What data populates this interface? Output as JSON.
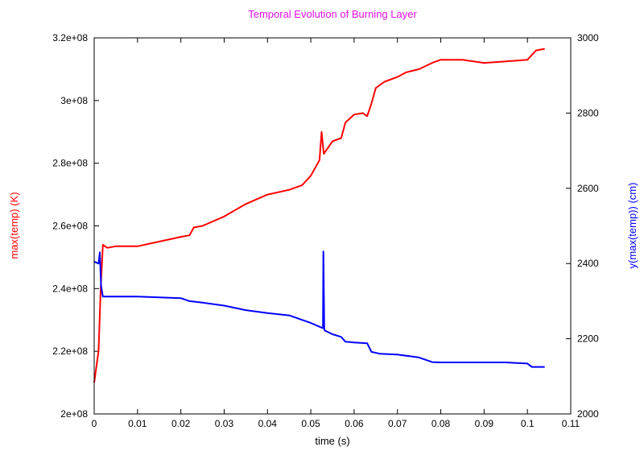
{
  "chart_data": {
    "type": "line",
    "title": "Temporal Evolution of Burning Layer",
    "xlabel": "time (s)",
    "ylabel_left": "max(temp) (K)",
    "ylabel_right": "y(max(temp)) (cm)",
    "xlim": [
      0,
      0.11
    ],
    "ylim_left": [
      200000000,
      320000000
    ],
    "ylim_right": [
      2000,
      3000
    ],
    "x_ticks": [
      0,
      0.01,
      0.02,
      0.03,
      0.04,
      0.05,
      0.06,
      0.07,
      0.08,
      0.09,
      0.1,
      0.11
    ],
    "x_tick_labels": [
      "0",
      "0.01",
      "0.02",
      "0.03",
      "0.04",
      "0.05",
      "0.06",
      "0.07",
      "0.08",
      "0.09",
      "0.1",
      "0.11"
    ],
    "y_left_ticks": [
      200000000,
      220000000,
      240000000,
      260000000,
      280000000,
      300000000,
      320000000
    ],
    "y_left_tick_labels": [
      "2e+08",
      "2.2e+08",
      "2.4e+08",
      "2.6e+08",
      "2.8e+08",
      "3e+08",
      "3.2e+08"
    ],
    "y_right_ticks": [
      2000,
      2200,
      2400,
      2600,
      2800,
      3000
    ],
    "y_right_tick_labels": [
      "2000",
      "2200",
      "2400",
      "2600",
      "2800",
      "3000"
    ],
    "grid": false,
    "series": [
      {
        "color": "#ff0000",
        "axis": "left",
        "x": [
          0,
          0.0005,
          0.001,
          0.0015,
          0.002,
          0.003,
          0.005,
          0.01,
          0.015,
          0.02,
          0.022,
          0.023,
          0.025,
          0.03,
          0.035,
          0.04,
          0.045,
          0.048,
          0.05,
          0.052,
          0.0525,
          0.053,
          0.055,
          0.057,
          0.058,
          0.06,
          0.062,
          0.063,
          0.064,
          0.065,
          0.067,
          0.07,
          0.072,
          0.075,
          0.078,
          0.08,
          0.085,
          0.09,
          0.095,
          0.1,
          0.102,
          0.104
        ],
        "values": [
          210000000,
          215000000,
          220000000,
          240000000,
          254000000,
          253000000,
          253500000,
          253500000,
          255000000,
          256500000,
          257000000,
          259500000,
          260000000,
          263000000,
          267000000,
          270000000,
          271500000,
          273000000,
          276000000,
          281000000,
          290000000,
          283000000,
          287000000,
          288000000,
          293000000,
          295500000,
          296000000,
          295000000,
          299000000,
          304000000,
          306000000,
          307500000,
          309000000,
          310000000,
          312000000,
          313000000,
          313000000,
          312000000,
          312500000,
          313000000,
          316000000,
          316500000
        ]
      },
      {
        "color": "#0000ff",
        "axis": "right",
        "x": [
          0,
          0.001,
          0.0013,
          0.0016,
          0.002,
          0.003,
          0.005,
          0.01,
          0.02,
          0.022,
          0.025,
          0.03,
          0.035,
          0.04,
          0.045,
          0.05,
          0.052,
          0.0528,
          0.0529,
          0.0531,
          0.0532,
          0.055,
          0.057,
          0.058,
          0.06,
          0.063,
          0.064,
          0.066,
          0.07,
          0.075,
          0.078,
          0.08,
          0.085,
          0.09,
          0.095,
          0.1,
          0.101,
          0.104
        ],
        "values": [
          2405,
          2400,
          2430,
          2340,
          2312,
          2312,
          2312,
          2312,
          2308,
          2300,
          2296,
          2288,
          2276,
          2268,
          2262,
          2242,
          2232,
          2228,
          2432,
          2228,
          2222,
          2212,
          2205,
          2192,
          2190,
          2188,
          2165,
          2160,
          2158,
          2150,
          2138,
          2137,
          2137,
          2137,
          2137,
          2134,
          2125,
          2125
        ]
      }
    ]
  }
}
